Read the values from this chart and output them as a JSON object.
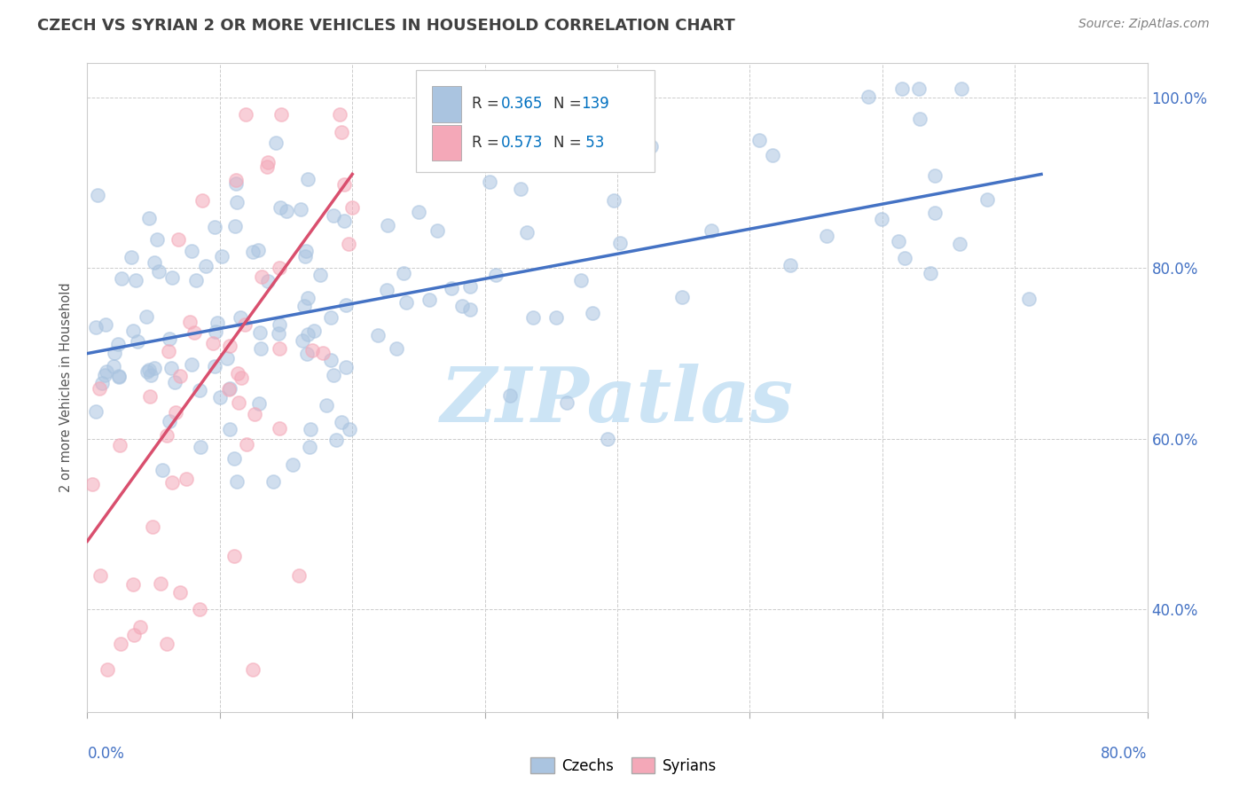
{
  "title": "CZECH VS SYRIAN 2 OR MORE VEHICLES IN HOUSEHOLD CORRELATION CHART",
  "source": "Source: ZipAtlas.com",
  "ylabel": "2 or more Vehicles in Household",
  "xmin": 0.0,
  "xmax": 80.0,
  "ymin": 28.0,
  "ymax": 104.0,
  "czech_R": 0.365,
  "czech_N": 139,
  "syrian_R": 0.573,
  "syrian_N": 53,
  "czech_color": "#aac4e0",
  "syrian_color": "#f4a8b8",
  "czech_line_color": "#4472c4",
  "syrian_line_color": "#d94f6e",
  "legend_value_color": "#0070c0",
  "right_axis_color": "#4472c4",
  "background_color": "#ffffff",
  "watermark_text": "ZIPatlas",
  "watermark_color": "#cce4f5",
  "title_color": "#404040",
  "source_color": "#808080",
  "grid_color": "#cccccc",
  "czech_line_y0": 70.0,
  "czech_line_y1": 91.0,
  "syrian_line_y0": 48.0,
  "syrian_line_y1": 91.0,
  "syrian_line_x1": 20.0
}
